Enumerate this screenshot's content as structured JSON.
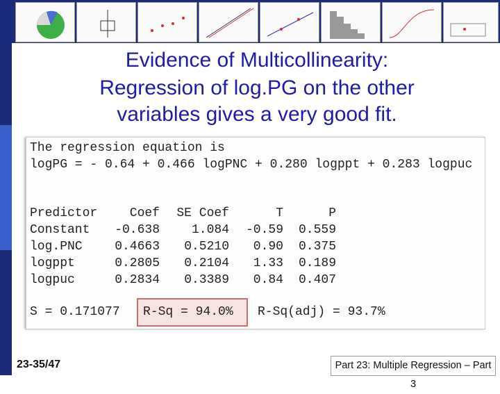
{
  "header": {
    "title_lines": [
      "Evidence of Multicollinearity:",
      "Regression of log.PG on the other",
      "variables gives a very good fit."
    ]
  },
  "output": {
    "equation_heading": "The regression equation is",
    "equation": "logPG = - 0.64 + 0.466 logPNC + 0.280 logppt + 0.283 logpuc",
    "table": {
      "columns": [
        "Predictor",
        "Coef",
        "SE Coef",
        "T",
        "P"
      ],
      "rows": [
        [
          "Constant",
          "-0.638",
          "1.084",
          "-0.59",
          "0.559"
        ],
        [
          "log.PNC",
          "0.4663",
          "0.5210",
          "0.90",
          "0.375"
        ],
        [
          "logppt",
          "0.2805",
          "0.2104",
          "1.33",
          "0.189"
        ],
        [
          "logpuc",
          "0.2834",
          "0.3389",
          "0.84",
          "0.407"
        ]
      ]
    },
    "s": "S = 0.171077",
    "r_sq": "R-Sq = 94.0%",
    "r_sq_adj": "R-Sq(adj) = 93.7%"
  },
  "footer": {
    "page": "23-35/47",
    "course": "Part 23: Multiple Regression – Part 3"
  }
}
